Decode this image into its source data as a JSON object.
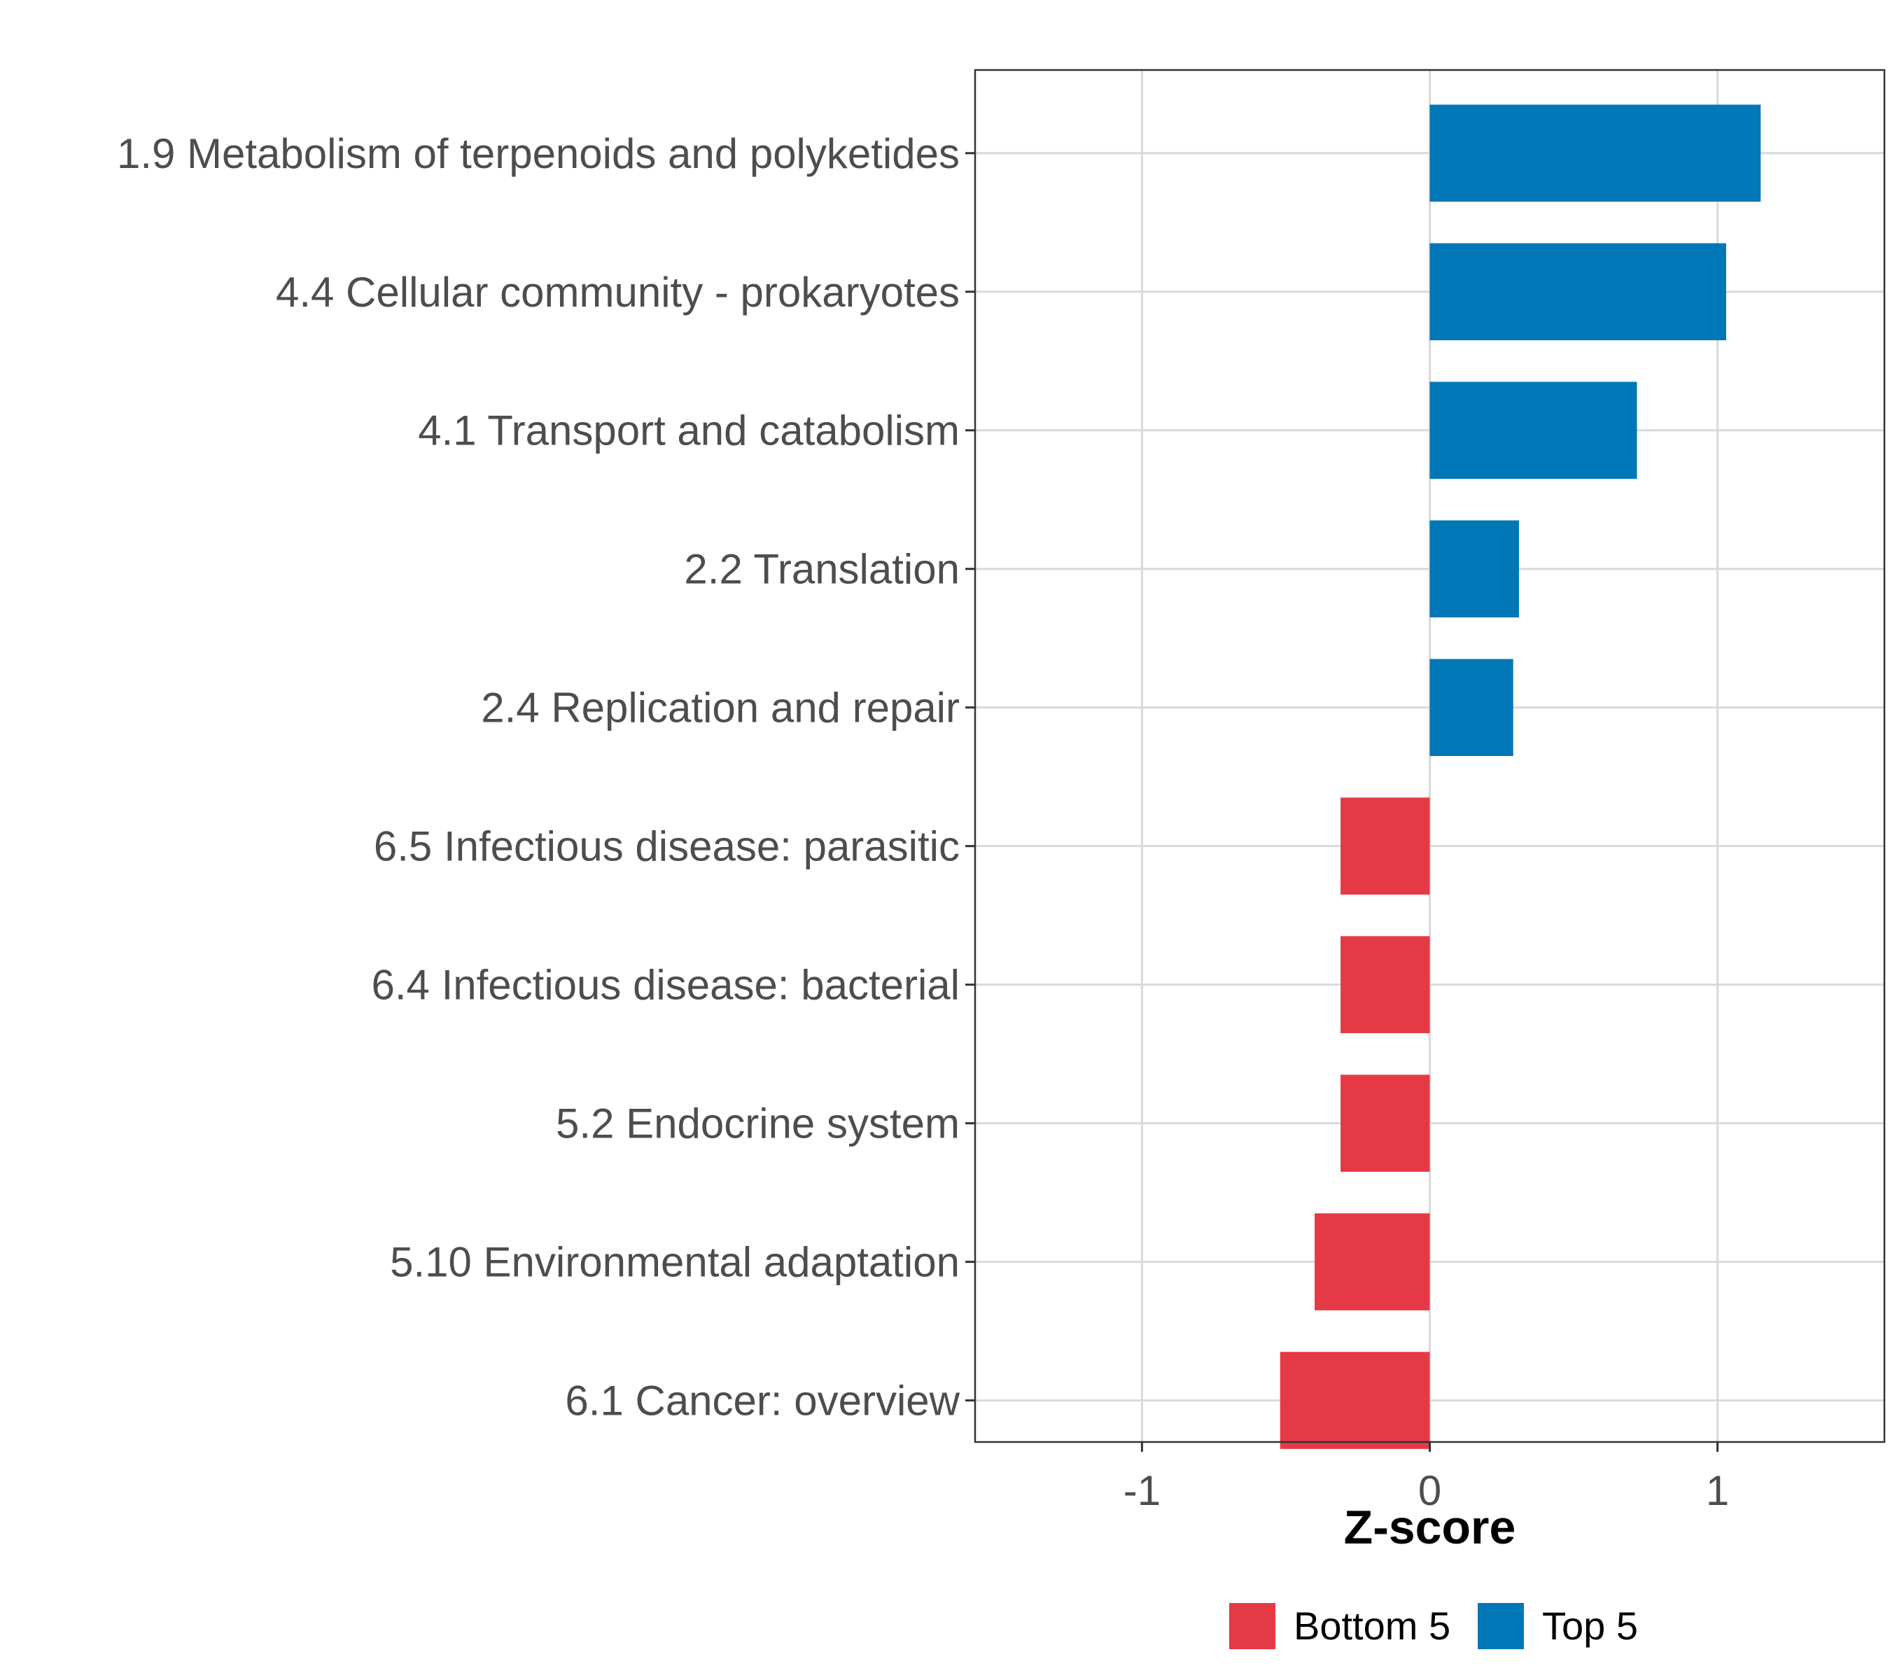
{
  "chart_data": {
    "type": "bar",
    "orientation": "horizontal",
    "title": "",
    "xlabel": "Z-score",
    "ylabel": "",
    "xlim": [
      -1.58,
      1.58
    ],
    "xticks": [
      -1,
      0,
      1
    ],
    "xtick_labels": [
      "-1",
      "0",
      "1"
    ],
    "grid": true,
    "legend_position": "bottom",
    "categories": [
      "1.9 Metabolism of terpenoids and polyketides",
      "4.4 Cellular community - prokaryotes",
      "4.1 Transport and catabolism",
      "2.2 Translation",
      "2.4 Replication and repair",
      "6.5 Infectious disease: parasitic",
      "6.4 Infectious disease: bacterial",
      "5.2 Endocrine system",
      "5.10 Environmental adaptation",
      "6.1 Cancer: overview"
    ],
    "values": [
      1.15,
      1.03,
      0.72,
      0.31,
      0.29,
      -0.31,
      -0.31,
      -0.31,
      -0.4,
      -0.52
    ],
    "groups": [
      "Top 5",
      "Top 5",
      "Top 5",
      "Top 5",
      "Top 5",
      "Bottom 5",
      "Bottom 5",
      "Bottom 5",
      "Bottom 5",
      "Bottom 5"
    ],
    "legend": [
      {
        "name": "Bottom 5",
        "color": "#e63946"
      },
      {
        "name": "Top 5",
        "color": "#0077b6"
      }
    ]
  }
}
